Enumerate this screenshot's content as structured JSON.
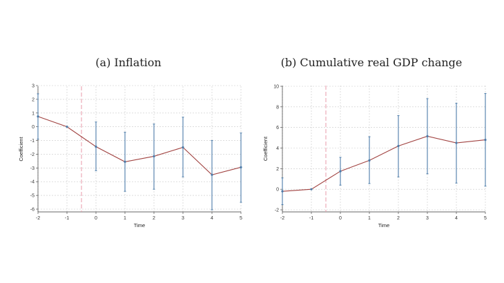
{
  "chart_data": [
    {
      "type": "line",
      "title": "(a) Inflation",
      "xlabel": "Time",
      "ylabel": "Coefficient",
      "x": [
        -2,
        -1,
        0,
        1,
        2,
        3,
        4,
        5
      ],
      "xticks": [
        "-2",
        "-1",
        "0",
        "1",
        "2",
        "3",
        "4",
        "5"
      ],
      "yticks": [
        "-6",
        "-5",
        "-4",
        "-3",
        "-2",
        "-1",
        "0",
        "1",
        "2",
        "3"
      ],
      "xlim": [
        -2,
        5
      ],
      "ylim": [
        -6.2,
        3
      ],
      "grid": true,
      "event_line_x": -0.5,
      "series": [
        {
          "values": [
            0.75,
            0.0,
            -1.45,
            -2.55,
            -2.15,
            -1.5,
            -3.5,
            -2.95
          ],
          "ci_low": [
            -0.9,
            0.0,
            -3.2,
            -4.7,
            -4.55,
            -3.65,
            -6.05,
            -5.5
          ],
          "ci_high": [
            2.4,
            0.0,
            0.35,
            -0.4,
            0.2,
            0.7,
            -1.0,
            -0.45
          ]
        }
      ]
    },
    {
      "type": "line",
      "title": "(b) Cumulative real GDP change",
      "xlabel": "Time",
      "ylabel": "Coefficient",
      "x": [
        -2,
        -1,
        0,
        1,
        2,
        3,
        4,
        5
      ],
      "xticks": [
        "-2",
        "-1",
        "0",
        "1",
        "2",
        "3",
        "4",
        "5"
      ],
      "yticks": [
        "-2",
        "0",
        "2",
        "4",
        "6",
        "8",
        "10"
      ],
      "xlim": [
        -2,
        5
      ],
      "ylim": [
        -2.3,
        10
      ],
      "grid": true,
      "event_line_x": -0.5,
      "series": [
        {
          "values": [
            -0.2,
            0.0,
            1.75,
            2.8,
            4.2,
            5.15,
            4.5,
            4.8
          ],
          "ci_low": [
            -1.5,
            0.0,
            0.4,
            0.55,
            1.2,
            1.5,
            0.6,
            0.3
          ],
          "ci_high": [
            1.1,
            0.0,
            3.1,
            5.1,
            7.15,
            8.8,
            8.35,
            9.3
          ]
        }
      ]
    }
  ],
  "colors": {
    "line": "#a0413f",
    "error_bar": "#4a7aa8",
    "point": "#4a7aa8",
    "grid": "#c8c8c8",
    "event_line": "#e89aa8",
    "axis": "#333333"
  }
}
